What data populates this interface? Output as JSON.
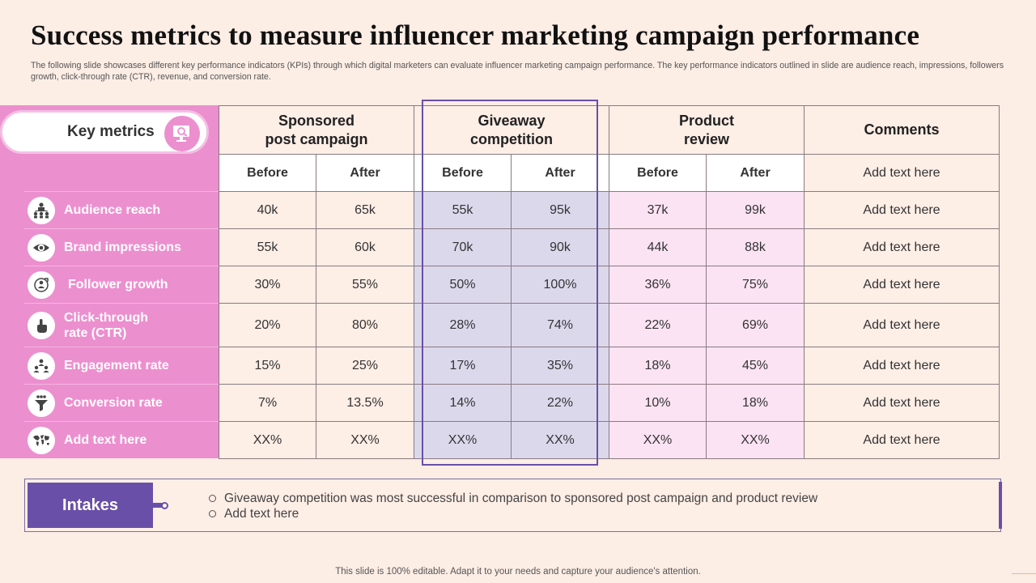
{
  "title": "Success metrics to measure influencer marketing campaign performance",
  "subtitle": "The following slide showcases different key performance indicators (KPIs) through which digital marketers can evaluate influencer marketing campaign performance. The key performance indicators outlined in slide are audience reach, impressions, followers growth, click-through rate (CTR), revenue, and conversion rate.",
  "key_metrics_label": "Key metrics",
  "campaigns": [
    {
      "name": "Sponsored post campaign",
      "line1": "Sponsored",
      "line2": "post campaign"
    },
    {
      "name": "Giveaway competition",
      "line1": "Giveaway",
      "line2": "competition"
    },
    {
      "name": "Product review",
      "line1": "Product",
      "line2": "review"
    }
  ],
  "comments_header": "Comments",
  "before_label": "Before",
  "after_label": "After",
  "header_comment": "Add text here",
  "rows": [
    {
      "label": "Audience reach",
      "icon": "org-chart-icon",
      "values": [
        "40k",
        "65k",
        "55k",
        "95k",
        "37k",
        "99k"
      ],
      "comment": "Add text here"
    },
    {
      "label": "Brand impressions",
      "icon": "eye-icon",
      "values": [
        "55k",
        "60k",
        "70k",
        "90k",
        "44k",
        "88k"
      ],
      "comment": "Add text here"
    },
    {
      "label": "Follower growth",
      "icon": "growth-icon",
      "values": [
        "30%",
        "55%",
        "50%",
        "100%",
        "36%",
        "75%"
      ],
      "comment": "Add text here"
    },
    {
      "label": "Click-through rate (CTR)",
      "line1": "Click-through",
      "line2": "rate (CTR)",
      "icon": "hand-pointer-icon",
      "values": [
        "20%",
        "80%",
        "28%",
        "74%",
        "22%",
        "69%"
      ],
      "comment": "Add text here"
    },
    {
      "label": "Engagement rate",
      "icon": "people-group-icon",
      "values": [
        "15%",
        "25%",
        "17%",
        "35%",
        "18%",
        "45%"
      ],
      "comment": "Add text here"
    },
    {
      "label": "Conversion rate",
      "icon": "funnel-icon",
      "values": [
        "7%",
        "13.5%",
        "14%",
        "22%",
        "10%",
        "18%"
      ],
      "comment": "Add text here"
    },
    {
      "label": "Add text here",
      "icon": "world-map-icon",
      "values": [
        "XX%",
        "XX%",
        "XX%",
        "XX%",
        "XX%",
        "XX%"
      ],
      "comment": "Add text here"
    }
  ],
  "intakes": {
    "label": "Intakes",
    "bullets": [
      "Giveaway competition was most successful in comparison to sponsored post campaign and product review",
      "Add text here"
    ]
  },
  "footer": "This slide is 100% editable. Adapt it to your needs and capture your audience's attention.",
  "colors": {
    "background": "#fcede5",
    "pink_accent": "#ec8fcf",
    "purple_accent": "#6a4fa8",
    "giveaway_cell": "#dcd8ec",
    "product_cell": "#fbe3f3"
  }
}
